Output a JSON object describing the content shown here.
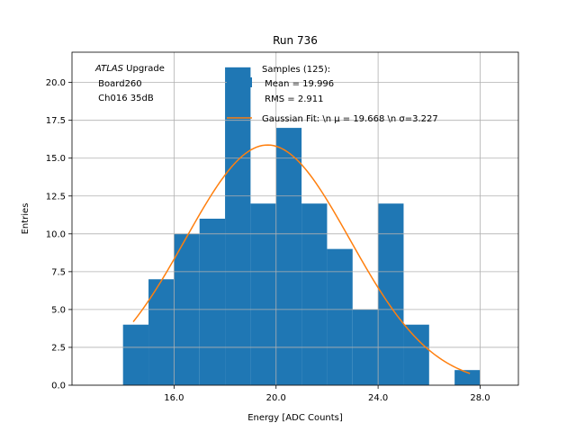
{
  "chart_data": {
    "type": "bar",
    "title": "Run 736",
    "xlabel": "Energy [ADC Counts]",
    "ylabel": "Entries",
    "xlim": [
      12.0,
      29.5
    ],
    "ylim": [
      0.0,
      22.0
    ],
    "grid": true,
    "x_ticks": [
      16.0,
      20.0,
      24.0,
      28.0
    ],
    "x_tick_labels": [
      "16.0",
      "20.0",
      "24.0",
      "28.0"
    ],
    "y_ticks": [
      0.0,
      2.5,
      5.0,
      7.5,
      10.0,
      12.5,
      15.0,
      17.5,
      20.0
    ],
    "y_tick_labels": [
      "0.0",
      "2.5",
      "5.0",
      "7.5",
      "10.0",
      "12.5",
      "15.0",
      "17.5",
      "20.0"
    ],
    "histogram": {
      "bin_edges": [
        14,
        15,
        16,
        17,
        18,
        19,
        20,
        21,
        22,
        23,
        24,
        25,
        26,
        27,
        28
      ],
      "counts": [
        4,
        7,
        10,
        11,
        21,
        12,
        17,
        12,
        9,
        5,
        12,
        4,
        0,
        1
      ],
      "color": "#1f77b4"
    },
    "fit_curve": {
      "mu": 19.668,
      "sigma": 3.227,
      "amplitude": 15.87,
      "x_range": [
        14.4,
        27.6
      ],
      "color": "#ff7f0e"
    },
    "annotation": {
      "italic": "ATLAS",
      "rest": " Upgrade",
      "line2": " Board260",
      "line3": " Ch016 35dB"
    },
    "legend": {
      "placement": "top-right",
      "samples_line1": "Samples (125):",
      "samples_line2": " Mean = 19.996",
      "samples_line3": " RMS = 2.911",
      "fit_label": "Gaussian Fit: \\n μ = 19.668 \\n σ=3.227"
    }
  }
}
